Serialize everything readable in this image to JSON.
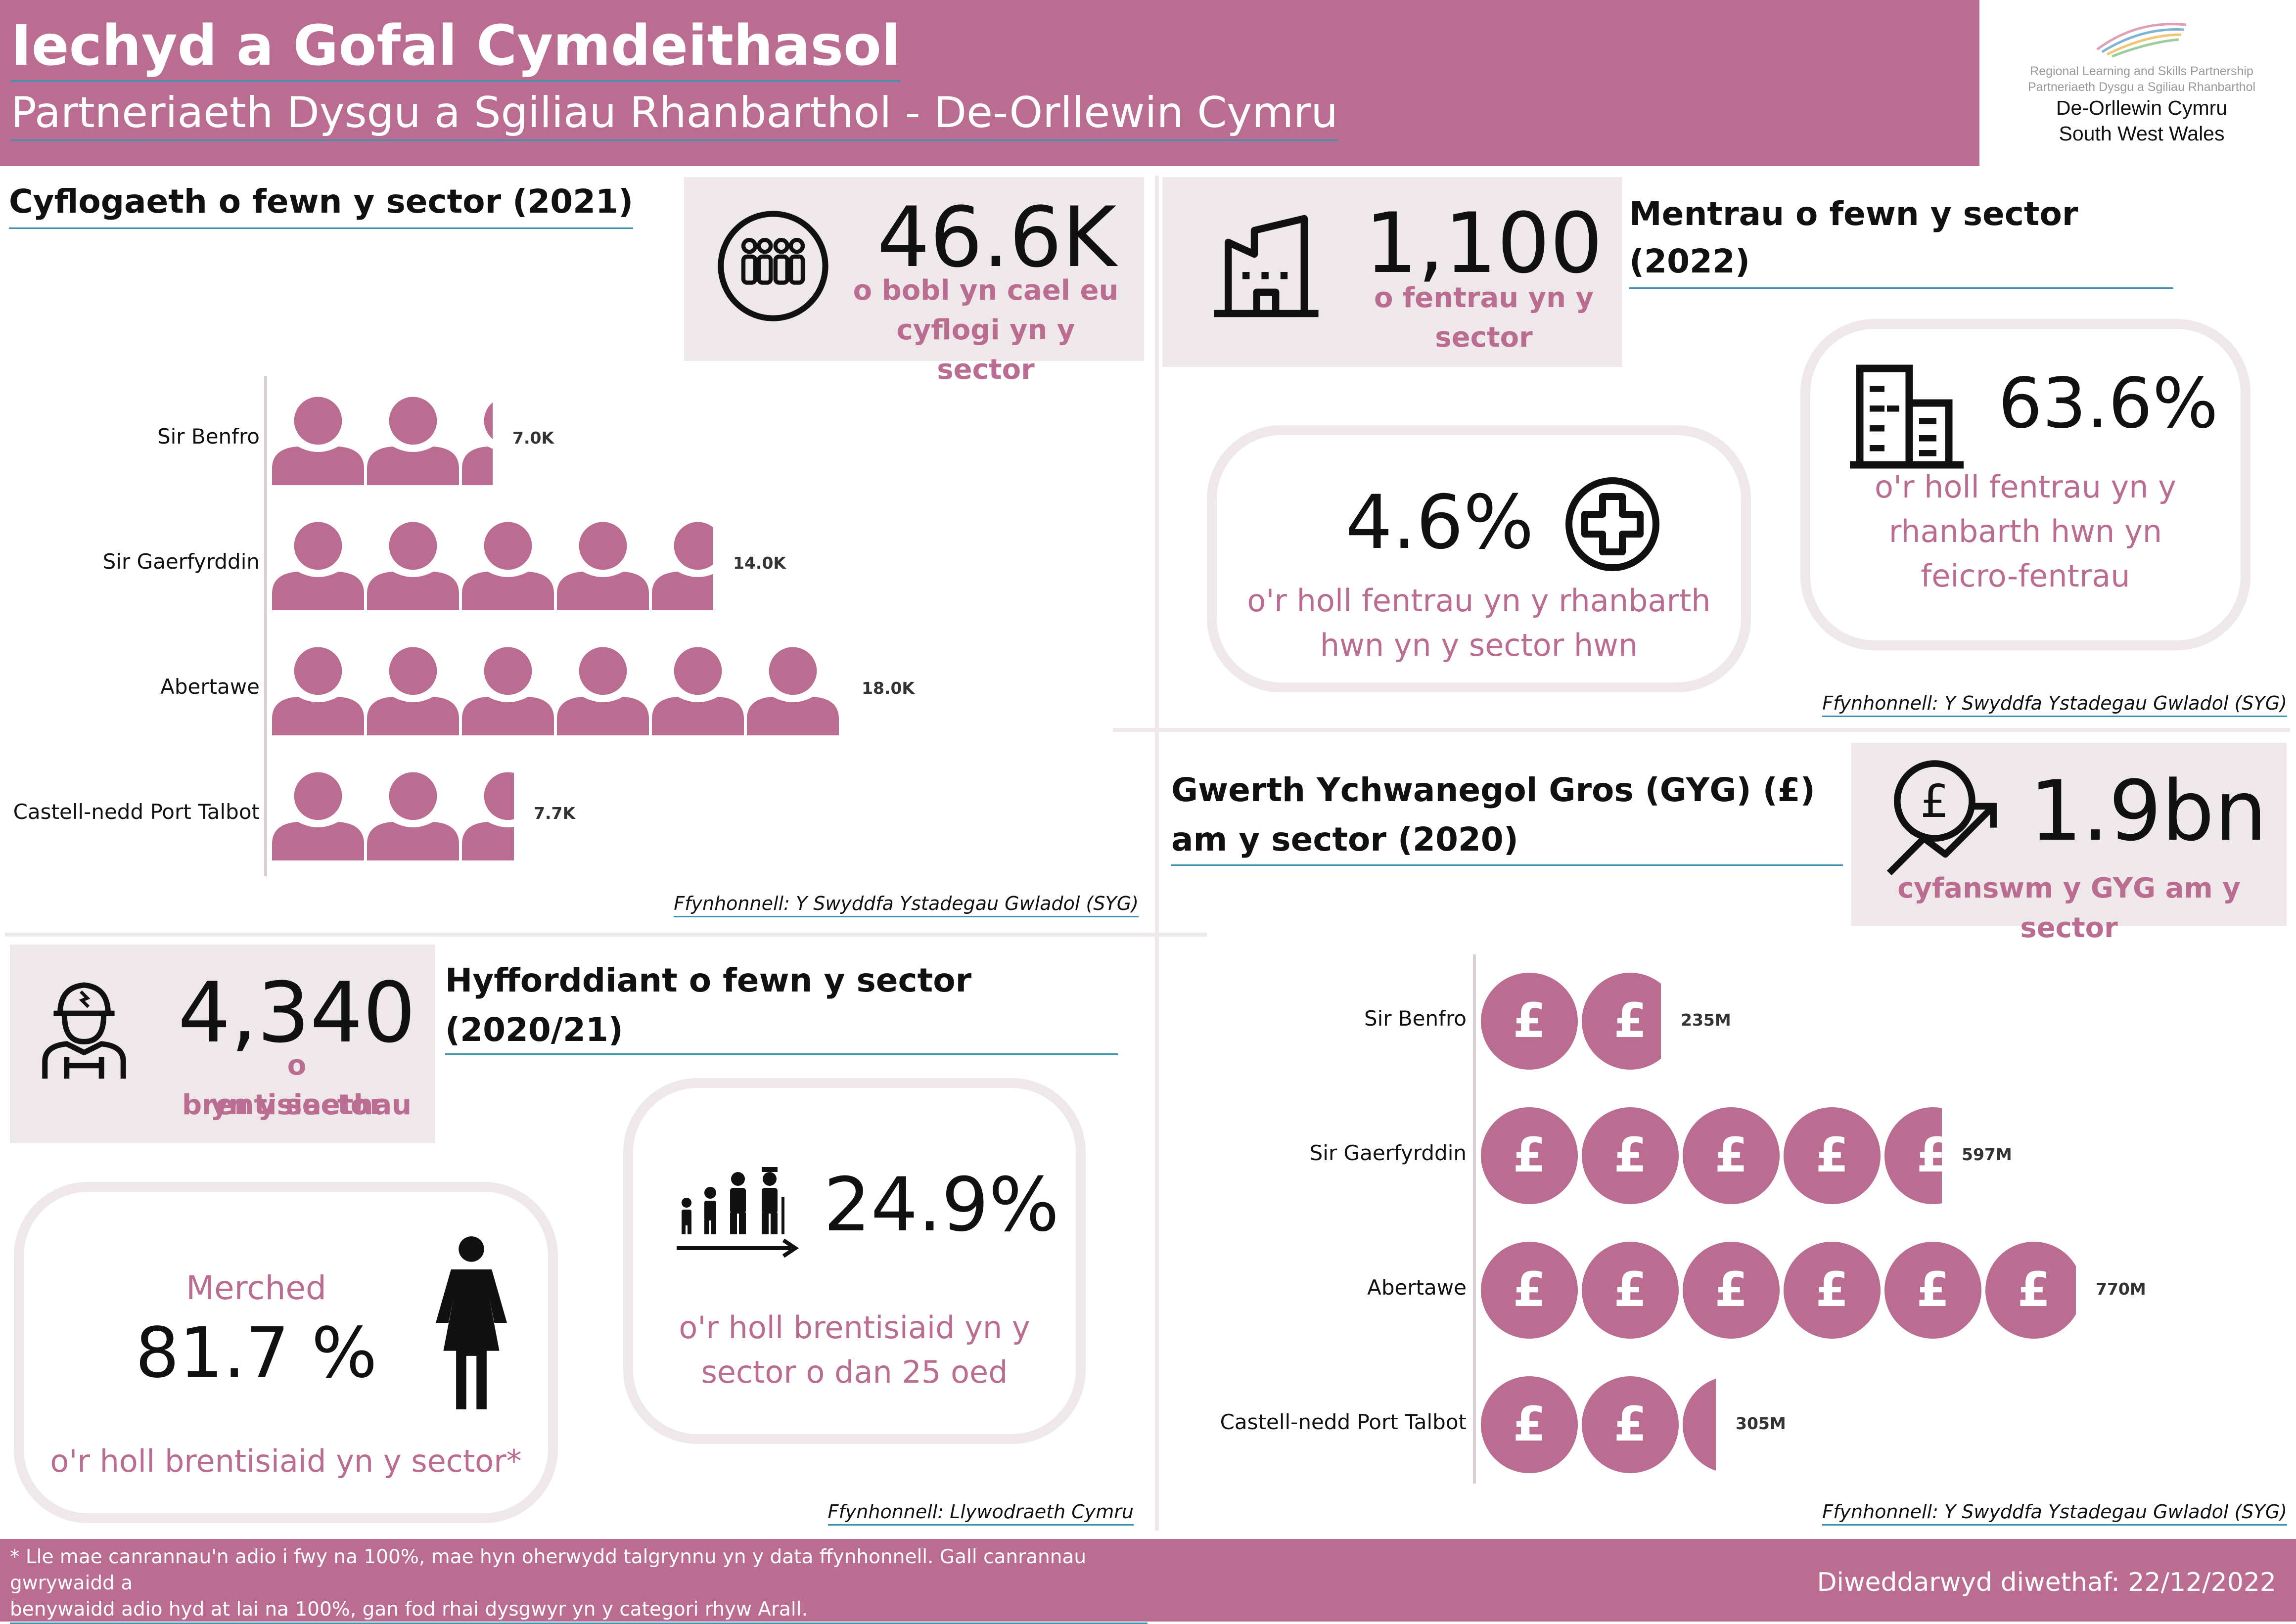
{
  "header": {
    "title": "Iechyd a Gofal Cymdeithasol",
    "subtitle": "Partneriaeth Dysgu a Sgiliau Rhanbarthol - De-Orllewin Cymru",
    "logo": {
      "line1": "Regional Learning and Skills Partnership",
      "line2": "Partneriaeth Dysgu a Sgiliau Rhanbarthol",
      "line3": "De-Orllewin Cymru",
      "line4": "South West Wales"
    }
  },
  "employment": {
    "title": "Cyflogaeth o fewn y sector (2021)",
    "stat_value": "46.6K",
    "stat_label_1": "o bobl yn cael eu",
    "stat_label_2": "cyflogi yn y sector",
    "icon": "group-of-people-icon",
    "source": "Ffynhonnell: Y Swyddfa Ystadegau Gwladol (SYG)",
    "rows": [
      {
        "label": "Sir Benfro",
        "value": 7.0,
        "display": "7.0K"
      },
      {
        "label": "Sir Gaerfyrddin",
        "value": 14.0,
        "display": "14.0K"
      },
      {
        "label": "Abertawe",
        "value": 18.0,
        "display": "18.0K"
      },
      {
        "label": "Castell-nedd Port Talbot",
        "value": 7.7,
        "display": "7.7K"
      }
    ]
  },
  "enterprises": {
    "title": "Mentrau o fewn y sector (2022)",
    "stat_value": "1,100",
    "stat_label_1": "o fentrau yn y",
    "stat_label_2": "sector",
    "icon": "building-icon",
    "share_value": "4.6%",
    "share_label_1": "o'r holl fentrau yn y rhanbarth",
    "share_label_2": "hwn yn y sector hwn",
    "share_icon": "medical-cross-icon",
    "micro_value": "63.6%",
    "micro_label_1": "o'r holl fentrau yn y",
    "micro_label_2": "rhanbarth hwn yn",
    "micro_label_3": "feicro-fentrau",
    "micro_icon": "office-buildings-icon",
    "source": "Ffynhonnell: Y Swyddfa Ystadegau Gwladol (SYG)"
  },
  "gva": {
    "title_1": "Gwerth Ychwanegol Gros (GYG) (£)",
    "title_2": "am y sector (2020)",
    "stat_value": "1.9bn",
    "stat_label": "cyfanswm y GYG am y sector",
    "icon": "pound-growth-icon",
    "coin_symbol": "£",
    "source": "Ffynhonnell: Y Swyddfa Ystadegau Gwladol (SYG)",
    "rows": [
      {
        "label": "Sir Benfro",
        "value": 235,
        "display": "235M"
      },
      {
        "label": "Sir Gaerfyrddin",
        "value": 597,
        "display": "597M"
      },
      {
        "label": "Abertawe",
        "value": 770,
        "display": "770M"
      },
      {
        "label": "Castell-nedd Port Talbot",
        "value": 305,
        "display": "305M"
      }
    ]
  },
  "training": {
    "title_1": "Hyfforddiant o fewn y sector",
    "title_2": "(2020/21)",
    "stat_value": "4,340",
    "stat_label_1": "o brentisiaethau",
    "stat_label_2": "yn y sector",
    "icon": "worker-icon",
    "female_heading": "Merched",
    "female_value": "81.7 %",
    "female_label": "o'r holl brentisiaid yn y sector*",
    "female_icon": "woman-icon",
    "young_value": "24.9%",
    "young_label_1": "o'r holl brentisiaid yn y",
    "young_label_2": "sector o dan 25 oed",
    "young_icon": "age-progression-icon",
    "source": "Ffynhonnell: Llywodraeth Cymru"
  },
  "footer": {
    "footnote_1": "* Lle mae canrannau'n adio i fwy na 100%, mae hyn oherwydd talgrynnu yn y data ffynhonnell. Gall canrannau gwrywaidd a",
    "footnote_2": "benywaidd adio hyd at lai na 100%, gan fod rhai dysgwyr yn y categori rhyw Arall.",
    "updated": "Diweddarwyd diwethaf: 22/12/2022"
  },
  "colors": {
    "accent": "#bb6d91",
    "panel": "#efe8ea",
    "underline": "#3d8fb4"
  }
}
